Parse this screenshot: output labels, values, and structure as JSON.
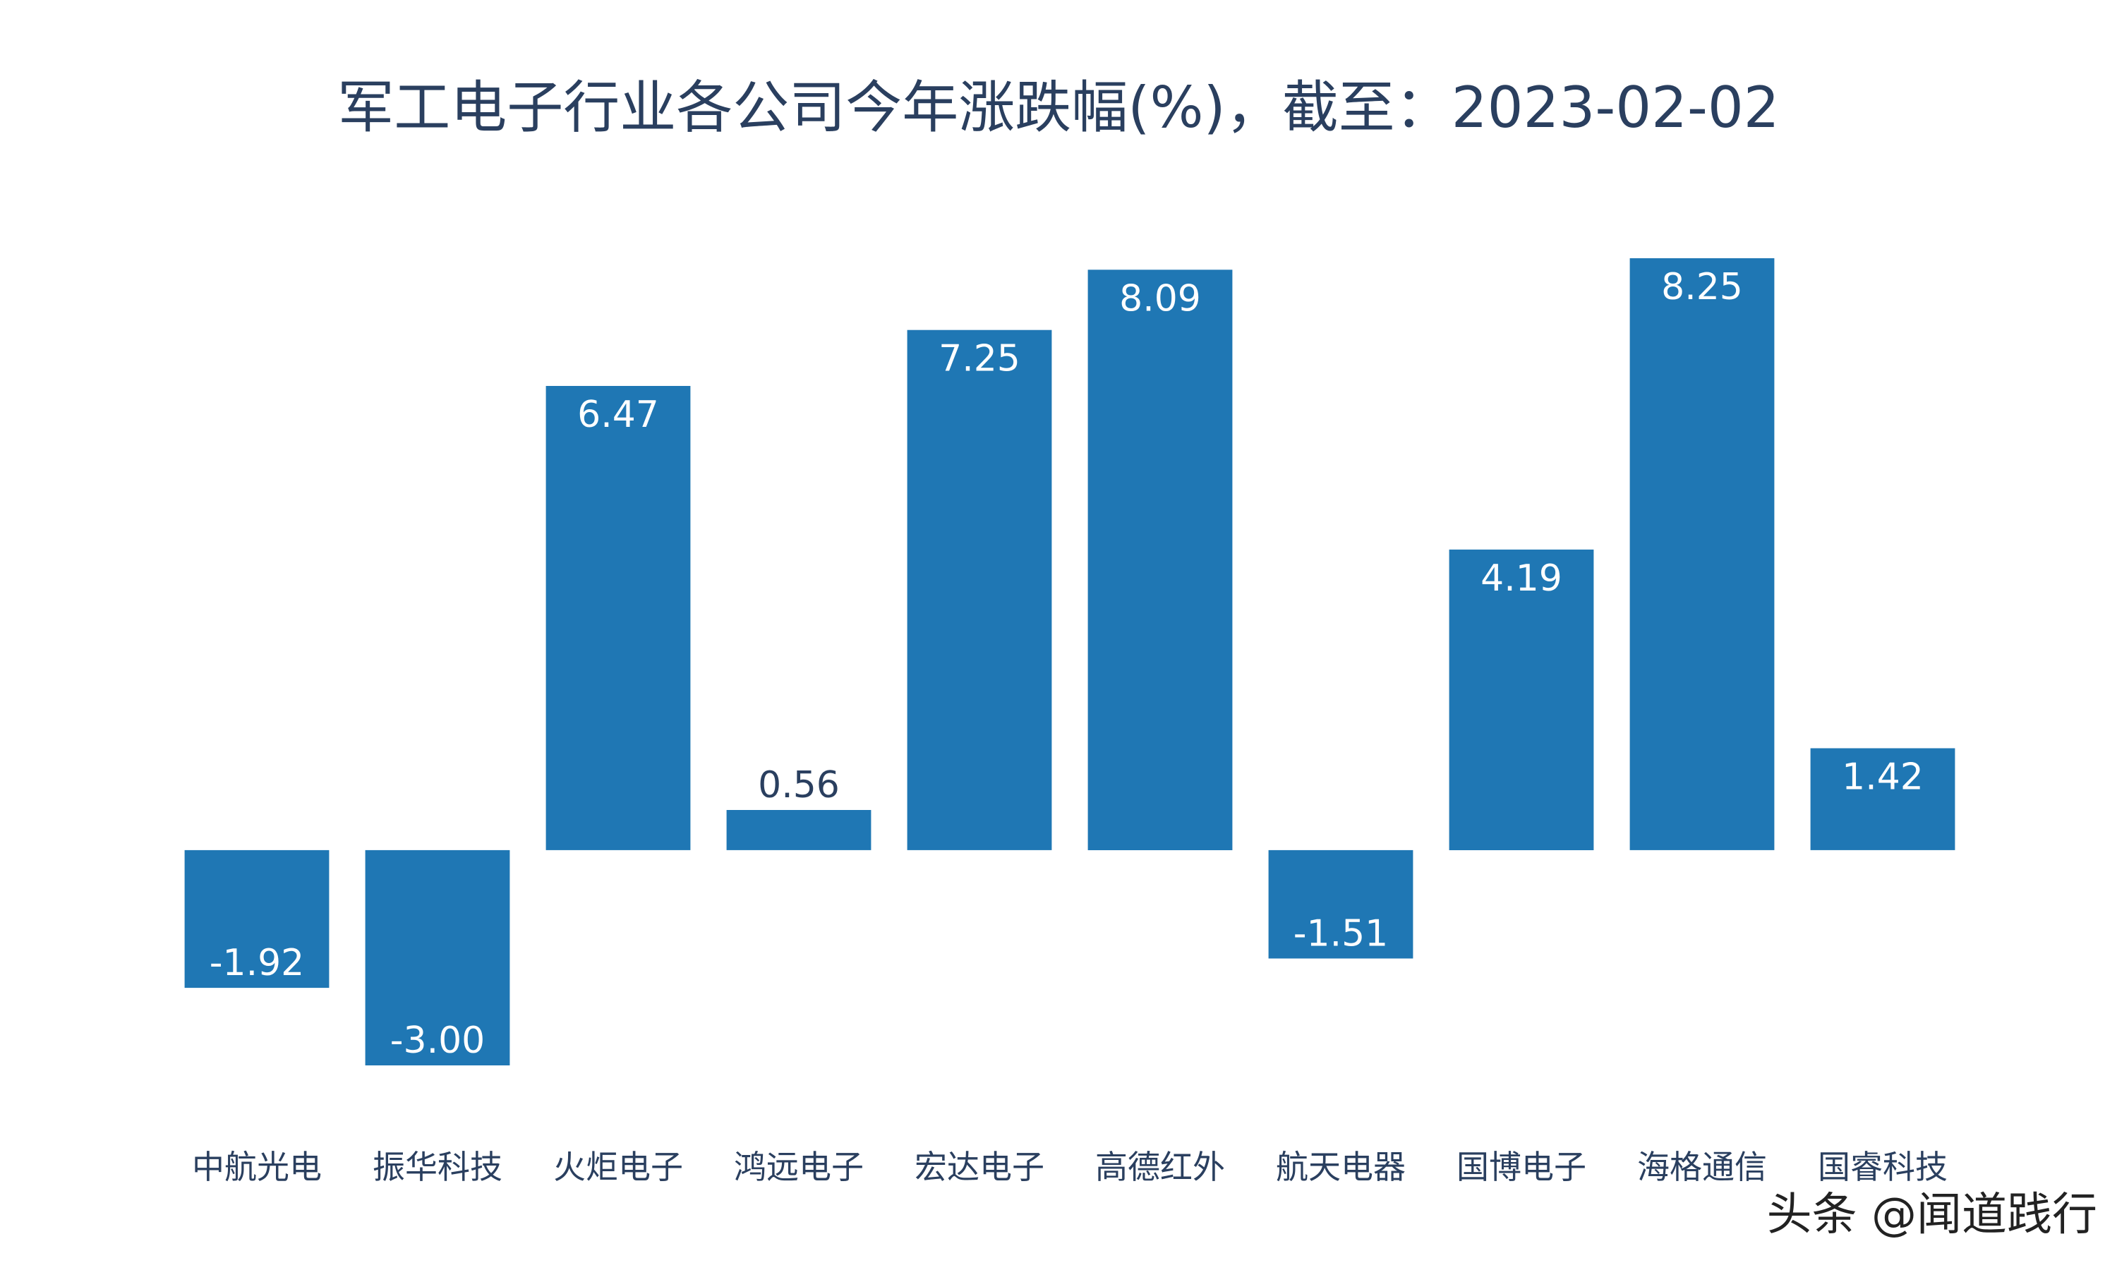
{
  "chart_data": {
    "type": "bar",
    "title": "军工电子行业各公司今年涨跌幅(%)，截至：2023-02-02",
    "categories": [
      "中航光电",
      "振华科技",
      "火炬电子",
      "鸿远电子",
      "宏达电子",
      "高德红外",
      "航天电器",
      "国博电子",
      "海格通信",
      "国睿科技"
    ],
    "values": [
      -1.92,
      -3.0,
      6.47,
      0.56,
      7.25,
      8.09,
      -1.51,
      4.19,
      8.25,
      1.42
    ],
    "labels": [
      "-1.92",
      "-3.00",
      "6.47",
      "0.56",
      "7.25",
      "8.09",
      "-1.51",
      "4.19",
      "8.25",
      "1.42"
    ],
    "xlabel": "",
    "ylabel": "",
    "ylim": [
      -3.0,
      8.25
    ],
    "grid": false,
    "colors": {
      "bar": "#1f77b4",
      "label_inside": "#ffffff",
      "label_outside": "#2a3f5f",
      "tick": "#2a3f5f"
    }
  },
  "watermark": "头条 @闻道践行"
}
